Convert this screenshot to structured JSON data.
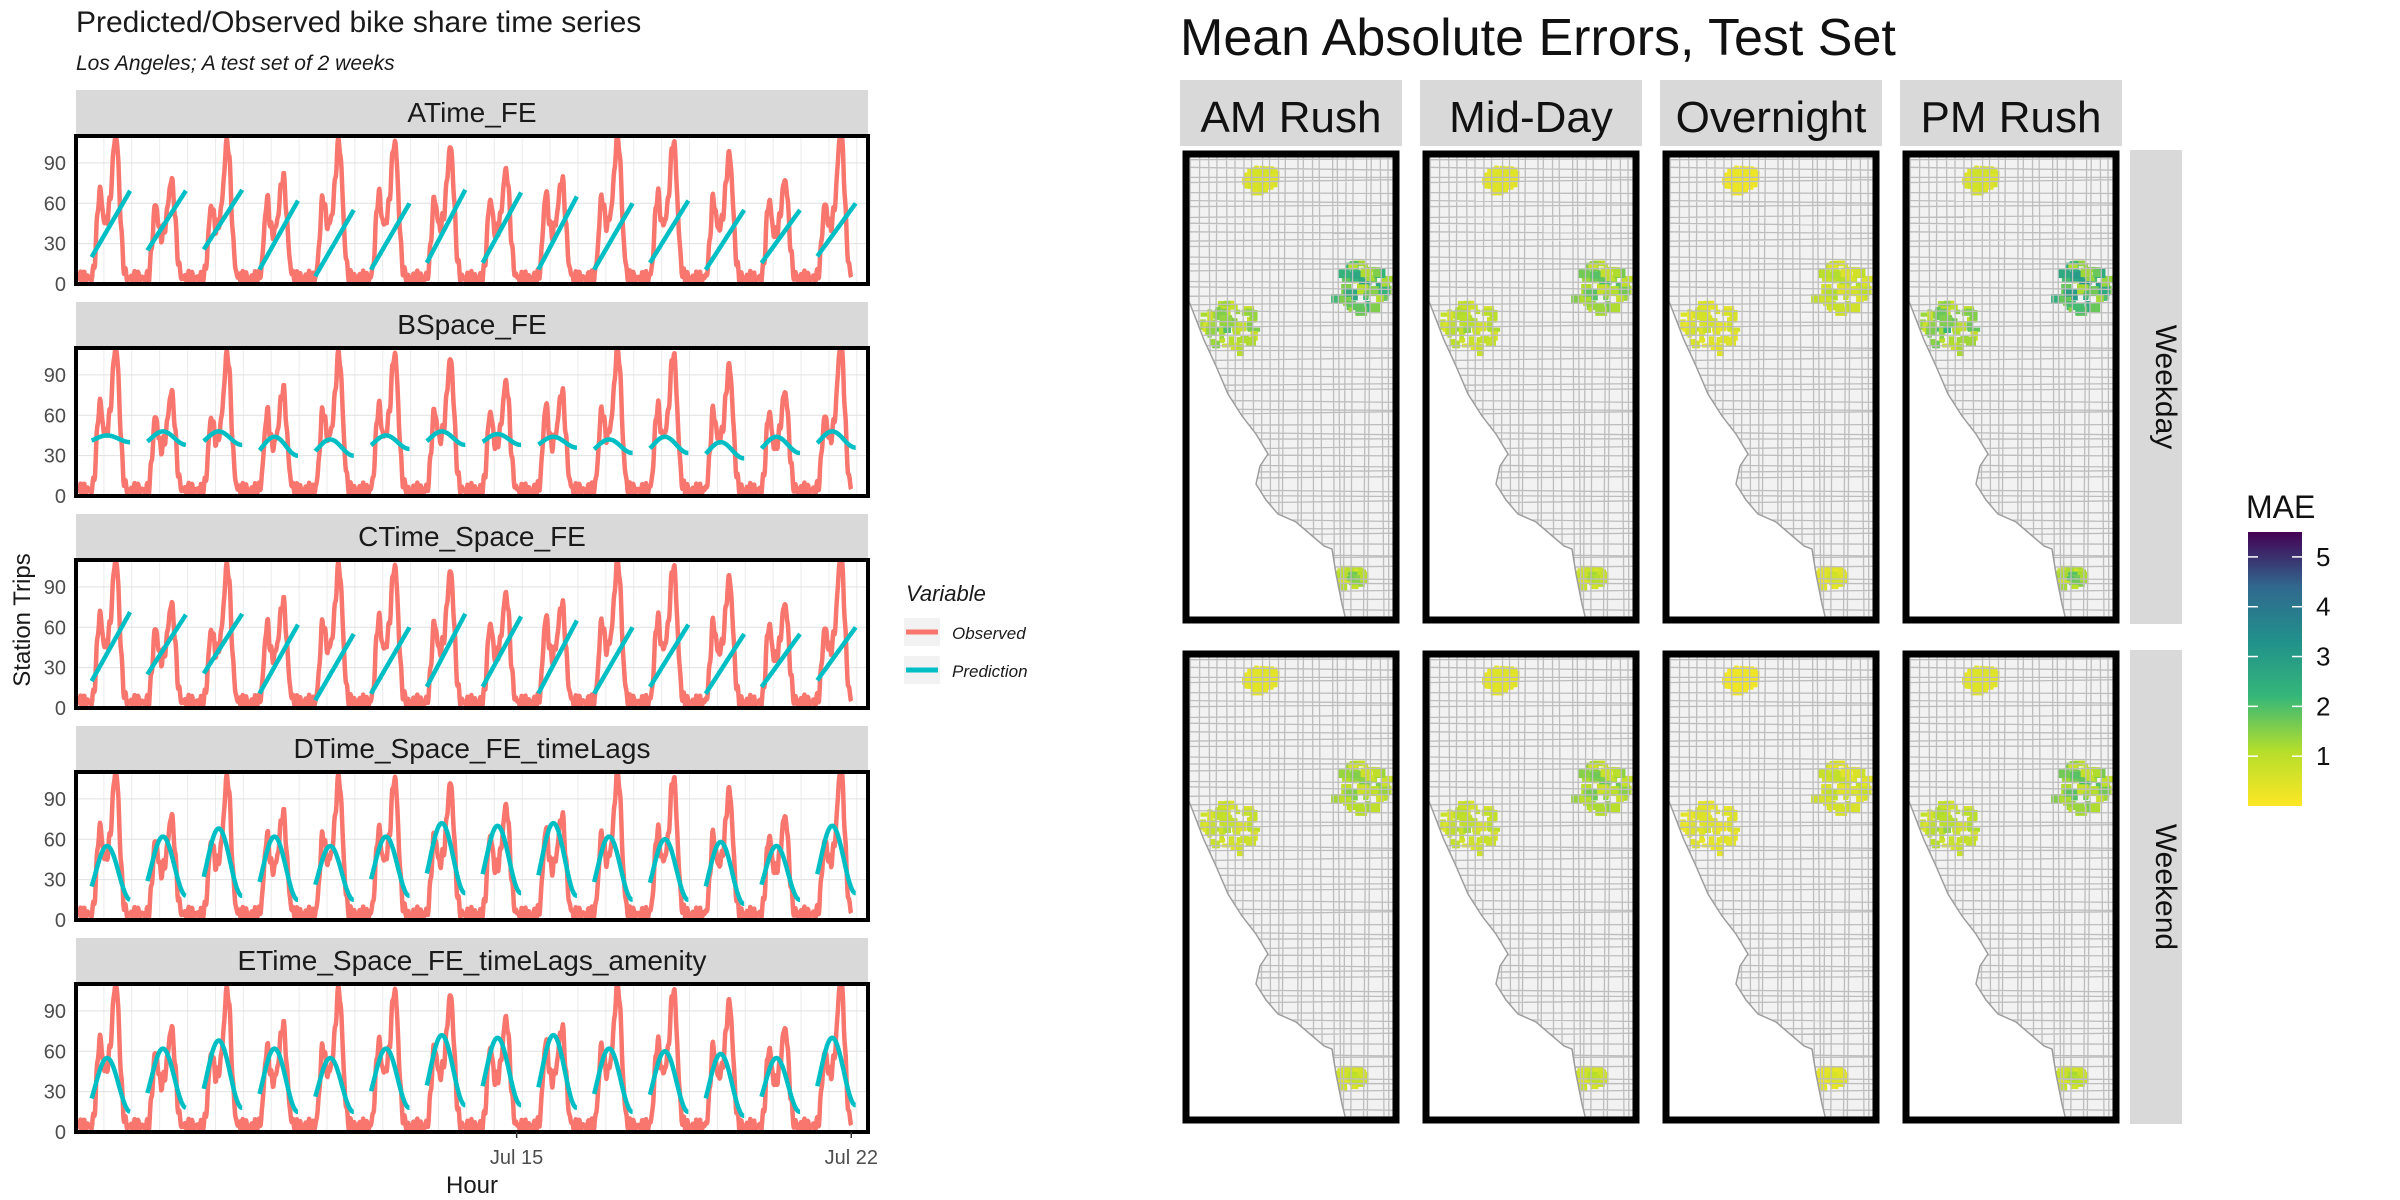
{
  "left_panel": {
    "title": "Predicted/Observed bike share time series",
    "subtitle": "Los Angeles; A test set of 2 weeks",
    "ylabel": "Station Trips",
    "xlabel": "Hour",
    "legend": {
      "title": "Variable",
      "items": [
        {
          "label": "Observed",
          "color": "#F8766D"
        },
        {
          "label": "Prediction",
          "color": "#00BFC4"
        }
      ]
    }
  },
  "right_panel": {
    "title": "Mean Absolute Errors, Test Set",
    "columns": [
      "AM Rush",
      "Mid-Day",
      "Overnight",
      "PM Rush"
    ],
    "rows": [
      "Weekday",
      "Weekend"
    ],
    "legend_title": "MAE",
    "legend_ticks": [
      "1",
      "2",
      "3",
      "4",
      "5"
    ],
    "colors": {
      "low": "#fde725",
      "mid": "#21918c",
      "high": "#440154",
      "base_fill": "#f2f2f2",
      "tract_line": "#bdbdbd"
    }
  },
  "chart_data": [
    {
      "type": "line",
      "title": "Predicted/Observed bike share time series",
      "subtitle": "Los Angeles; A test set of 2 weeks",
      "xlabel": "Hour",
      "ylabel": "Station Trips",
      "ylim": [
        0,
        110
      ],
      "xlim": [
        0,
        14.2
      ],
      "x_ticks": [
        {
          "x": 7.9,
          "label": "Jul 15"
        },
        {
          "x": 13.9,
          "label": "Jul 22"
        }
      ],
      "y_ticks": [
        0,
        30,
        60,
        90
      ],
      "facets": [
        "ATime_FE",
        "BSpace_FE",
        "CTime_Space_FE",
        "DTime_Space_FE_timeLags",
        "ETime_Space_FE_timeLags_amenity"
      ],
      "series": [
        {
          "name": "Observed",
          "color": "#F8766D",
          "daily_peaks": [
            [
              60,
              102
            ],
            [
              52,
              70
            ],
            [
              50,
              98
            ],
            [
              55,
              72
            ],
            [
              55,
              97
            ],
            [
              58,
              97
            ],
            [
              55,
              93
            ],
            [
              55,
              77
            ],
            [
              60,
              70
            ],
            [
              55,
              102
            ],
            [
              58,
              97
            ],
            [
              55,
              88
            ],
            [
              55,
              70
            ],
            [
              50,
              105
            ]
          ]
        },
        {
          "name": "Prediction",
          "color": "#00BFC4",
          "facet_values": {
            "ATime_FE": [
              [
                20,
                70
              ],
              [
                25,
                70
              ],
              [
                25,
                70
              ],
              [
                10,
                62
              ],
              [
                5,
                55
              ],
              [
                10,
                60
              ],
              [
                15,
                70
              ],
              [
                15,
                68
              ],
              [
                10,
                65
              ],
              [
                10,
                60
              ],
              [
                15,
                62
              ],
              [
                10,
                55
              ],
              [
                15,
                55
              ],
              [
                20,
                60
              ]
            ],
            "BSpace_FE": [
              [
                40,
                45
              ],
              [
                38,
                48
              ],
              [
                38,
                48
              ],
              [
                30,
                44
              ],
              [
                30,
                42
              ],
              [
                35,
                45
              ],
              [
                38,
                48
              ],
              [
                38,
                46
              ],
              [
                36,
                44
              ],
              [
                32,
                42
              ],
              [
                32,
                44
              ],
              [
                28,
                40
              ],
              [
                32,
                44
              ],
              [
                36,
                48
              ]
            ],
            "CTime_Space_FE": [
              [
                20,
                72
              ],
              [
                25,
                70
              ],
              [
                25,
                70
              ],
              [
                10,
                62
              ],
              [
                5,
                55
              ],
              [
                10,
                60
              ],
              [
                15,
                70
              ],
              [
                15,
                68
              ],
              [
                10,
                65
              ],
              [
                10,
                60
              ],
              [
                15,
                62
              ],
              [
                10,
                55
              ],
              [
                15,
                55
              ],
              [
                20,
                60
              ]
            ],
            "DTime_Space_FE_timeLags": [
              [
                15,
                55
              ],
              [
                18,
                62
              ],
              [
                18,
                68
              ],
              [
                15,
                62
              ],
              [
                15,
                55
              ],
              [
                18,
                62
              ],
              [
                20,
                72
              ],
              [
                20,
                70
              ],
              [
                18,
                72
              ],
              [
                15,
                62
              ],
              [
                15,
                60
              ],
              [
                12,
                58
              ],
              [
                15,
                55
              ],
              [
                20,
                70
              ]
            ],
            "ETime_Space_FE_timeLags_amenity": [
              [
                15,
                55
              ],
              [
                18,
                62
              ],
              [
                18,
                68
              ],
              [
                15,
                62
              ],
              [
                15,
                55
              ],
              [
                18,
                62
              ],
              [
                20,
                72
              ],
              [
                20,
                70
              ],
              [
                18,
                72
              ],
              [
                15,
                62
              ],
              [
                15,
                60
              ],
              [
                12,
                58
              ],
              [
                15,
                55
              ],
              [
                20,
                70
              ]
            ]
          }
        }
      ]
    },
    {
      "type": "heatmap",
      "title": "Mean Absolute Errors, Test Set",
      "columns": [
        "AM Rush",
        "Mid-Day",
        "Overnight",
        "PM Rush"
      ],
      "rows": [
        "Weekday",
        "Weekend"
      ],
      "legend": {
        "title": "MAE",
        "range": [
          0,
          5
        ],
        "ticks": [
          1,
          2,
          3,
          4,
          5
        ],
        "colormap": "viridis reversed"
      },
      "description_values": {
        "Weekday": {
          "AM Rush": [
            0.2,
            3.5
          ],
          "Mid-Day": [
            0.2,
            2.5
          ],
          "Overnight": [
            0.1,
            1.5
          ],
          "PM Rush": [
            0.2,
            4.0
          ]
        },
        "Weekend": {
          "AM Rush": [
            0.2,
            2.0
          ],
          "Mid-Day": [
            0.2,
            2.2
          ],
          "Overnight": [
            0.1,
            1.2
          ],
          "PM Rush": [
            0.2,
            2.5
          ]
        }
      }
    }
  ]
}
